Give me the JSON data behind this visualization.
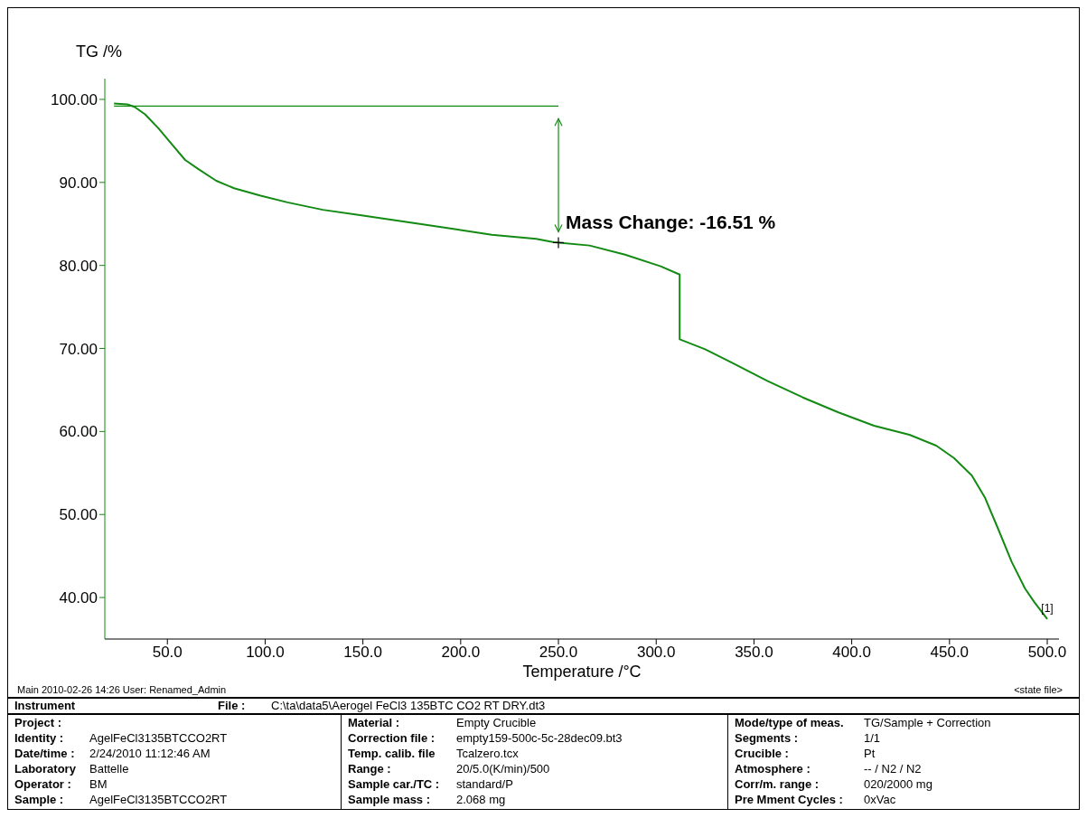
{
  "chart_data": {
    "type": "line",
    "xlabel": "Temperature /°C",
    "ylabel": "TG /%",
    "x": [
      22.7,
      29.5,
      33.2,
      38.6,
      45.5,
      52.3,
      59.1,
      65.9,
      75,
      84.1,
      97.7,
      111.4,
      129.5,
      147.7,
      170.5,
      193.2,
      215.9,
      238.6,
      247.7,
      265.9,
      284.1,
      302.3,
      312,
      312,
      325,
      338.6,
      356.8,
      375,
      393.2,
      411.4,
      429.5,
      443.2,
      452.3,
      461.4,
      468.2,
      475,
      481.8,
      488.6,
      493.2,
      500
    ],
    "series": [
      {
        "color": "#138a13",
        "values": [
          99.5,
          99.4,
          99.1,
          98.2,
          96.5,
          94.6,
          92.7,
          91.6,
          90.2,
          89.3,
          88.4,
          87.6,
          86.7,
          86.1,
          85.3,
          84.5,
          83.7,
          83.2,
          82.8,
          82.4,
          81.3,
          79.9,
          78.9,
          71.1,
          69.9,
          68.3,
          66.1,
          64.1,
          62.3,
          60.7,
          59.6,
          58.3,
          56.8,
          54.7,
          52.0,
          48.2,
          44.3,
          41.1,
          39.5,
          37.4
        ]
      }
    ],
    "xlim": [
      18,
      506
    ],
    "xticks": [
      {
        "value": 50,
        "label": "50.0"
      },
      {
        "value": 100,
        "label": "100.0"
      },
      {
        "value": 150,
        "label": "150.0"
      },
      {
        "value": 200,
        "label": "200.0"
      },
      {
        "value": 250,
        "label": "250.0"
      },
      {
        "value": 300,
        "label": "300.0"
      },
      {
        "value": 350,
        "label": "350.0"
      },
      {
        "value": 400,
        "label": "400.0"
      },
      {
        "value": 450,
        "label": "450.0"
      },
      {
        "value": 500,
        "label": "500.0"
      }
    ],
    "ylim": [
      35,
      102.5
    ],
    "yticks": [
      {
        "value": 40,
        "label": "40.00"
      },
      {
        "value": 50,
        "label": "50.00"
      },
      {
        "value": 60,
        "label": "60.00"
      },
      {
        "value": 70,
        "label": "70.00"
      },
      {
        "value": 80,
        "label": "80.00"
      },
      {
        "value": 90,
        "label": "90.00"
      },
      {
        "value": 100,
        "label": "100.00"
      }
    ],
    "grid": false,
    "marker": "none",
    "line_style": "solid",
    "ref_lines": [
      {
        "axis": "y",
        "value": 99.2,
        "color": "#138a13"
      }
    ],
    "annotations": [
      {
        "text": "Mass Change: -16.51 %",
        "x": 250,
        "y": 82.7
      },
      {
        "text": "[1]",
        "x": 500,
        "y": 37.4
      },
      "Main   2010-02-26 14:26   User: Renamed_Admin",
      "<state file>",
      "Instrument",
      "File :",
      "C:\\ta\\data5\\Aerogel FeCl3 135BTC CO2 RT DRY.dt3",
      "Project :",
      "Identity :",
      "AgelFeCl3135BTCCO2RT",
      "Date/time :",
      "2/24/2010 11:12:46 AM",
      "Laboratory",
      "Battelle",
      "Operator :",
      "BM",
      "Sample :",
      "AgelFeCl3135BTCCO2RT",
      "Material :",
      "Empty Crucible",
      "Correction file :",
      "empty159-500c-5c-28dec09.bt3",
      "Temp. calib. file",
      "Tcalzero.tcx",
      "Range :",
      "20/5.0(K/min)/500",
      "Sample car./TC :",
      "standard/P",
      "Sample mass :",
      "2.068 mg",
      "Mode/type of meas.",
      "TG/Sample + Correction",
      "Segments :",
      "1/1",
      "Crucible :",
      "Pt",
      "Atmosphere :",
      "-- / N2 / N2",
      "Corr/m. range :",
      "020/2000 mg",
      "Pre Mment Cycles :",
      "0xVac"
    ]
  }
}
